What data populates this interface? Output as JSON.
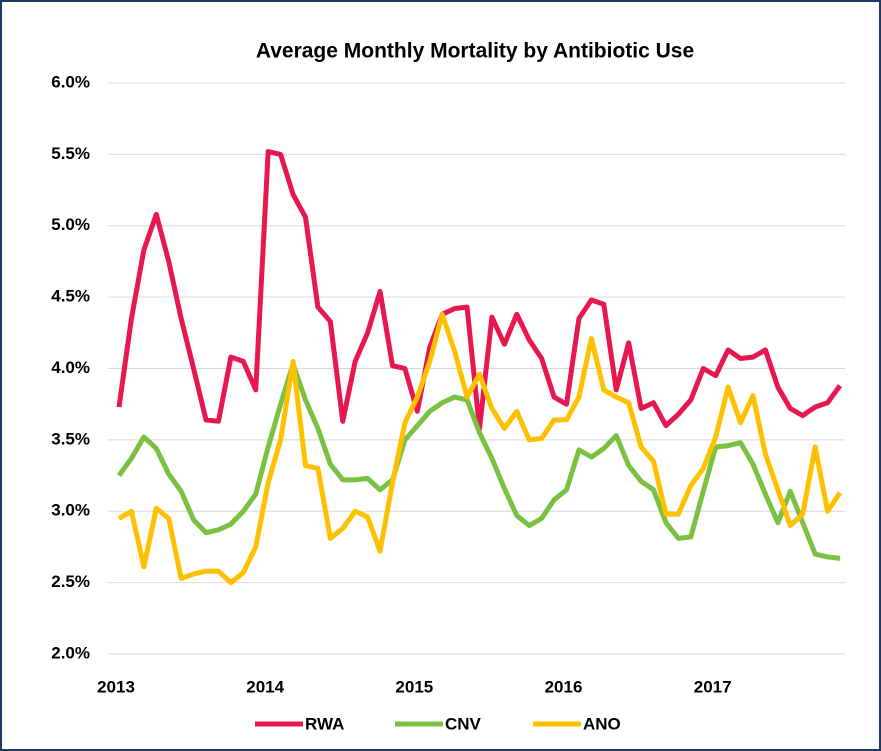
{
  "chart_data": {
    "type": "line",
    "title": "Average Monthly Mortality by Antibiotic Use",
    "categories": [
      "2013",
      null,
      null,
      null,
      null,
      null,
      null,
      null,
      null,
      null,
      null,
      null,
      "2014",
      null,
      null,
      null,
      null,
      null,
      null,
      null,
      null,
      null,
      null,
      null,
      "2015",
      null,
      null,
      null,
      null,
      null,
      null,
      null,
      null,
      null,
      null,
      null,
      "2016",
      null,
      null,
      null,
      null,
      null,
      null,
      null,
      null,
      null,
      null,
      null,
      "2017",
      null,
      null,
      null,
      null,
      null,
      null,
      null,
      null,
      null,
      null
    ],
    "series": [
      {
        "name": "RWA",
        "color": "#e8174f",
        "values": [
          3.73,
          4.35,
          4.83,
          5.08,
          4.75,
          4.35,
          4.0,
          3.64,
          3.63,
          4.08,
          4.05,
          3.85,
          5.52,
          5.5,
          5.22,
          5.06,
          4.43,
          4.33,
          3.63,
          4.05,
          4.25,
          4.54,
          4.02,
          4.0,
          3.7,
          4.15,
          4.38,
          4.42,
          4.43,
          3.58,
          4.36,
          4.17,
          4.38,
          4.2,
          4.07,
          3.8,
          3.75,
          4.35,
          4.48,
          4.45,
          3.85,
          4.18,
          3.72,
          3.76,
          3.6,
          3.68,
          3.78,
          4.0,
          3.95,
          4.13,
          4.07,
          4.08,
          4.13,
          3.87,
          3.72,
          3.67,
          3.73,
          3.76,
          3.88
        ]
      },
      {
        "name": "CNV",
        "color": "#7ac142",
        "values": [
          3.25,
          3.37,
          3.52,
          3.44,
          3.26,
          3.14,
          2.94,
          2.85,
          2.87,
          2.91,
          3.0,
          3.12,
          3.45,
          3.75,
          4.03,
          3.78,
          3.58,
          3.33,
          3.22,
          3.22,
          3.23,
          3.15,
          3.22,
          3.5,
          3.6,
          3.7,
          3.76,
          3.8,
          3.78,
          3.55,
          3.37,
          3.16,
          2.97,
          2.9,
          2.95,
          3.08,
          3.15,
          3.43,
          3.38,
          3.44,
          3.53,
          3.32,
          3.21,
          3.15,
          2.92,
          2.81,
          2.82,
          3.14,
          3.45,
          3.46,
          3.48,
          3.33,
          3.12,
          2.92,
          3.14,
          2.92,
          2.7,
          2.68,
          2.67
        ]
      },
      {
        "name": "ANO",
        "color": "#ffc000",
        "values": [
          2.95,
          3.0,
          2.61,
          3.02,
          2.95,
          2.53,
          2.56,
          2.58,
          2.58,
          2.5,
          2.57,
          2.75,
          3.2,
          3.5,
          4.05,
          3.32,
          3.3,
          2.81,
          2.88,
          3.0,
          2.96,
          2.72,
          3.2,
          3.62,
          3.8,
          4.05,
          4.38,
          4.12,
          3.8,
          3.96,
          3.72,
          3.58,
          3.7,
          3.5,
          3.51,
          3.64,
          3.64,
          3.8,
          4.21,
          3.85,
          3.8,
          3.76,
          3.45,
          3.35,
          2.98,
          2.98,
          3.18,
          3.3,
          3.52,
          3.87,
          3.62,
          3.81,
          3.4,
          3.15,
          2.9,
          2.98,
          3.45,
          3.0,
          3.13
        ]
      }
    ],
    "ylim": [
      2.0,
      6.0
    ],
    "yticks": [
      {
        "value": 2.0,
        "label": "2.0%"
      },
      {
        "value": 2.5,
        "label": "2.5%"
      },
      {
        "value": 3.0,
        "label": "3.0%"
      },
      {
        "value": 3.5,
        "label": "3.5%"
      },
      {
        "value": 4.0,
        "label": "4.0%"
      },
      {
        "value": 4.5,
        "label": "4.5%"
      },
      {
        "value": 5.0,
        "label": "5.0%"
      },
      {
        "value": 5.5,
        "label": "5.5%"
      },
      {
        "value": 6.0,
        "label": "6.0%"
      }
    ],
    "grid": true,
    "legend": "bottom"
  }
}
